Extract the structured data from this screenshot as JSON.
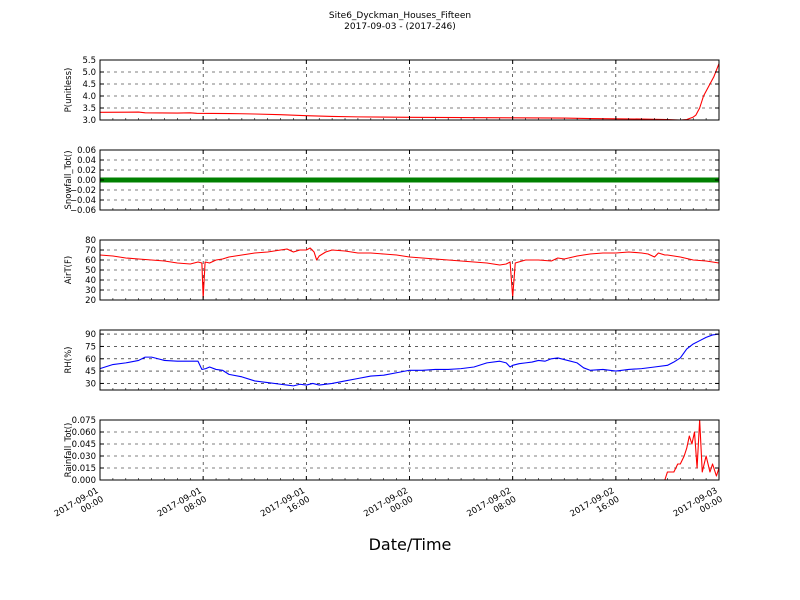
{
  "chart_data": {
    "type": "line",
    "title": "Site6_Dyckman_Houses_Fifteen",
    "subtitle": "2017-09-03 - (2017-246)",
    "xlabel": "Date/Time",
    "x_tick_labels": [
      [
        "2017-09-01",
        "00:00"
      ],
      [
        "2017-09-01",
        "08:00"
      ],
      [
        "2017-09-01",
        "16:00"
      ],
      [
        "2017-09-02",
        "00:00"
      ],
      [
        "2017-09-02",
        "08:00"
      ],
      [
        "2017-09-02",
        "16:00"
      ],
      [
        "2017-09-03",
        "00:00"
      ]
    ],
    "x_tick_hours": [
      0,
      8,
      16,
      24,
      32,
      40,
      48
    ],
    "xlim_hours": [
      0,
      48
    ],
    "grid": true,
    "panels": [
      {
        "ylabel": "P(unitless)",
        "color": "#ff0000",
        "ylim": [
          3.0,
          5.5
        ],
        "yticks": [
          3.0,
          3.5,
          4.0,
          4.5,
          5.0,
          5.5
        ],
        "tick_labels": [
          "3.0",
          "3.5",
          "4.0",
          "4.5",
          "5.0",
          "5.5"
        ],
        "points": [
          [
            0,
            3.32
          ],
          [
            3,
            3.33
          ],
          [
            3.5,
            3.3
          ],
          [
            6,
            3.29
          ],
          [
            7,
            3.3
          ],
          [
            7.5,
            3.28
          ],
          [
            10,
            3.27
          ],
          [
            11,
            3.26
          ],
          [
            12,
            3.25
          ],
          [
            14,
            3.22
          ],
          [
            16,
            3.18
          ],
          [
            18,
            3.15
          ],
          [
            20,
            3.13
          ],
          [
            24,
            3.11
          ],
          [
            28,
            3.1
          ],
          [
            32,
            3.09
          ],
          [
            36,
            3.08
          ],
          [
            38,
            3.06
          ],
          [
            40,
            3.05
          ],
          [
            42,
            3.04
          ],
          [
            44,
            3.02
          ],
          [
            45,
            3.0
          ],
          [
            45.5,
            3.02
          ],
          [
            46,
            3.12
          ],
          [
            46.2,
            3.2
          ],
          [
            46.5,
            3.5
          ],
          [
            46.8,
            4.0
          ],
          [
            47.2,
            4.4
          ],
          [
            47.6,
            4.8
          ],
          [
            48,
            5.35
          ]
        ]
      },
      {
        "ylabel": "Snowfall_Tot()",
        "color": "#008000",
        "ylim": [
          -0.06,
          0.06
        ],
        "yticks": [
          -0.06,
          -0.04,
          -0.02,
          0.0,
          0.02,
          0.04,
          0.06
        ],
        "tick_labels": [
          "−0.06",
          "−0.04",
          "−0.02",
          "0.00",
          "0.02",
          "0.04",
          "0.06"
        ],
        "marker": "dot",
        "points": [
          [
            0,
            0
          ],
          [
            48,
            0
          ]
        ]
      },
      {
        "ylabel": "AirT(F)",
        "color": "#ff0000",
        "ylim": [
          20,
          80
        ],
        "yticks": [
          20,
          30,
          40,
          50,
          60,
          70,
          80
        ],
        "tick_labels": [
          "20",
          "30",
          "40",
          "50",
          "60",
          "70",
          "80"
        ],
        "points": [
          [
            0,
            65
          ],
          [
            1,
            64
          ],
          [
            2,
            62
          ],
          [
            3,
            61
          ],
          [
            4,
            60
          ],
          [
            5,
            59
          ],
          [
            6,
            57
          ],
          [
            7,
            56
          ],
          [
            7.6,
            58
          ],
          [
            7.9,
            57
          ],
          [
            8.0,
            22
          ],
          [
            8.15,
            58
          ],
          [
            8.5,
            57
          ],
          [
            9,
            60
          ],
          [
            9.5,
            61
          ],
          [
            10,
            63
          ],
          [
            11,
            65
          ],
          [
            12,
            67
          ],
          [
            13,
            68
          ],
          [
            14,
            70
          ],
          [
            14.5,
            71
          ],
          [
            15,
            68
          ],
          [
            15.5,
            70
          ],
          [
            16,
            70
          ],
          [
            16.3,
            72
          ],
          [
            16.6,
            68
          ],
          [
            16.8,
            60
          ],
          [
            17,
            64
          ],
          [
            17.5,
            68
          ],
          [
            18,
            70
          ],
          [
            19,
            69
          ],
          [
            20,
            67
          ],
          [
            21,
            67
          ],
          [
            22,
            66
          ],
          [
            23,
            65
          ],
          [
            24,
            63
          ],
          [
            25,
            62
          ],
          [
            26,
            61
          ],
          [
            27,
            60
          ],
          [
            28,
            59
          ],
          [
            29,
            58
          ],
          [
            30,
            57
          ],
          [
            31,
            55
          ],
          [
            31.5,
            56
          ],
          [
            31.8,
            58
          ],
          [
            32,
            23
          ],
          [
            32.2,
            57
          ],
          [
            33,
            60
          ],
          [
            34,
            60
          ],
          [
            35,
            59
          ],
          [
            35.5,
            62
          ],
          [
            36,
            61
          ],
          [
            37,
            64
          ],
          [
            38,
            66
          ],
          [
            39,
            67
          ],
          [
            40,
            67
          ],
          [
            41,
            68
          ],
          [
            42,
            67
          ],
          [
            42.5,
            66
          ],
          [
            43,
            63
          ],
          [
            43.3,
            67
          ],
          [
            43.8,
            65
          ],
          [
            44,
            65
          ],
          [
            45,
            63
          ],
          [
            46,
            60
          ],
          [
            47,
            59
          ],
          [
            48,
            57
          ]
        ]
      },
      {
        "ylabel": "RH(%)",
        "color": "#0000ff",
        "ylim": [
          22,
          95
        ],
        "yticks": [
          30,
          45,
          60,
          75,
          90
        ],
        "tick_labels": [
          "30",
          "45",
          "60",
          "75",
          "90"
        ],
        "points": [
          [
            0,
            48
          ],
          [
            1,
            53
          ],
          [
            2,
            55
          ],
          [
            3,
            58
          ],
          [
            3.5,
            62
          ],
          [
            4,
            62
          ],
          [
            4.5,
            60
          ],
          [
            5,
            58
          ],
          [
            6,
            57
          ],
          [
            7,
            57
          ],
          [
            7.6,
            57
          ],
          [
            7.9,
            47
          ],
          [
            8.2,
            48
          ],
          [
            8.5,
            50
          ],
          [
            9,
            47
          ],
          [
            9.5,
            46
          ],
          [
            10,
            41
          ],
          [
            11,
            38
          ],
          [
            12,
            33
          ],
          [
            13,
            31
          ],
          [
            14,
            29
          ],
          [
            14.5,
            28
          ],
          [
            15,
            27
          ],
          [
            15.5,
            29
          ],
          [
            16,
            28
          ],
          [
            16.5,
            30
          ],
          [
            17,
            28
          ],
          [
            18,
            30
          ],
          [
            19,
            33
          ],
          [
            20,
            36
          ],
          [
            21,
            39
          ],
          [
            22,
            40
          ],
          [
            23,
            43
          ],
          [
            24,
            46
          ],
          [
            25,
            46
          ],
          [
            26,
            47
          ],
          [
            27,
            47
          ],
          [
            28,
            48
          ],
          [
            29,
            50
          ],
          [
            30,
            55
          ],
          [
            31,
            57
          ],
          [
            31.5,
            55
          ],
          [
            31.8,
            50
          ],
          [
            32,
            52
          ],
          [
            32.5,
            54
          ],
          [
            33,
            55
          ],
          [
            33.5,
            56
          ],
          [
            34,
            58
          ],
          [
            34.5,
            57
          ],
          [
            35,
            60
          ],
          [
            35.5,
            61
          ],
          [
            36,
            59
          ],
          [
            37,
            55
          ],
          [
            37.5,
            49
          ],
          [
            38,
            46
          ],
          [
            39,
            47
          ],
          [
            40,
            45
          ],
          [
            41,
            47
          ],
          [
            42,
            48
          ],
          [
            43,
            50
          ],
          [
            44,
            52
          ],
          [
            44.5,
            56
          ],
          [
            45,
            61
          ],
          [
            45.5,
            72
          ],
          [
            46,
            78
          ],
          [
            46.5,
            82
          ],
          [
            47,
            86
          ],
          [
            47.5,
            89
          ],
          [
            48,
            90
          ]
        ]
      },
      {
        "ylabel": "Rainfall_Tot()",
        "color": "#ff0000",
        "ylim": [
          0,
          0.075
        ],
        "yticks": [
          0.0,
          0.015,
          0.03,
          0.045,
          0.06,
          0.075
        ],
        "tick_labels": [
          "0.000",
          "0.015",
          "0.030",
          "0.045",
          "0.060",
          "0.075"
        ],
        "points": [
          [
            0,
            0
          ],
          [
            43.8,
            0
          ],
          [
            44,
            0.01
          ],
          [
            44.5,
            0.01
          ],
          [
            44.8,
            0.02
          ],
          [
            45,
            0.02
          ],
          [
            45.3,
            0.03
          ],
          [
            45.5,
            0.04
          ],
          [
            45.7,
            0.055
          ],
          [
            45.9,
            0.045
          ],
          [
            46.1,
            0.06
          ],
          [
            46.3,
            0.015
          ],
          [
            46.5,
            0.075
          ],
          [
            46.7,
            0.01
          ],
          [
            47,
            0.03
          ],
          [
            47.3,
            0.01
          ],
          [
            47.5,
            0.02
          ],
          [
            47.8,
            0.005
          ],
          [
            48,
            0.015
          ]
        ]
      }
    ]
  }
}
